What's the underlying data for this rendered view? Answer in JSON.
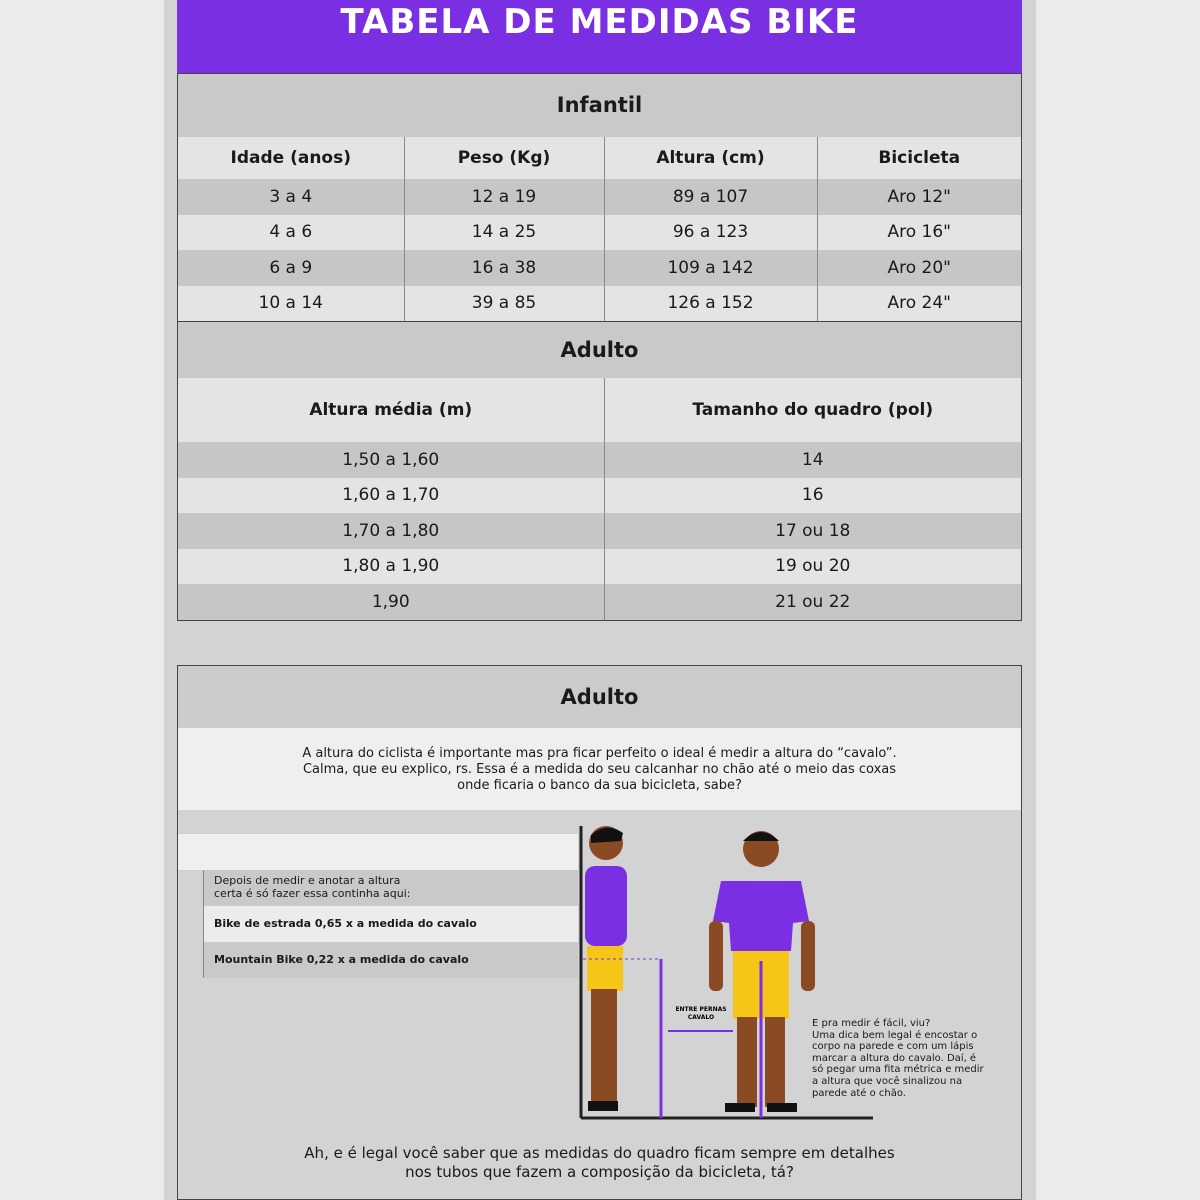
{
  "title": "TABELA DE MEDIDAS BIKE",
  "infantil": {
    "heading": "Infantil",
    "headers": [
      "Idade (anos)",
      "Peso (Kg)",
      "Altura (cm)",
      "Bicicleta"
    ],
    "rows": [
      [
        "3 a 4",
        "12 a 19",
        "89 a 107",
        "Aro 12\""
      ],
      [
        "4 a 6",
        "14 a 25",
        "96 a 123",
        "Aro 16\""
      ],
      [
        "6 a 9",
        "16 a 38",
        "109 a 142",
        "Aro 20\""
      ],
      [
        "10 a 14",
        "39 a 85",
        "126 a 152",
        "Aro 24\""
      ]
    ]
  },
  "adulto": {
    "heading": "Adulto",
    "headers": [
      "Altura média (m)",
      "Tamanho do quadro (pol)"
    ],
    "rows": [
      [
        "1,50 a 1,60",
        "14"
      ],
      [
        "1,60 a 1,70",
        "16"
      ],
      [
        "1,70 a 1,80",
        "17 ou 18"
      ],
      [
        "1,80 a 1,90",
        "19 ou 20"
      ],
      [
        "1,90",
        "21 ou 22"
      ]
    ]
  },
  "guide": {
    "heading": "Adulto",
    "intro": [
      "A altura do ciclista é importante mas pra ficar perfeito o ideal é medir a altura do “cavalo”.",
      "Calma, que eu explico, rs. Essa é a medida do seu calcanhar no chão até o meio das coxas",
      "onde ficaria o banco da sua bicicleta, sabe?"
    ],
    "steps_intro": [
      "Depois de medir e anotar a altura",
      "certa é só fazer essa continha aqui:"
    ],
    "road": "Bike de estrada 0,65 x a medida do cavalo",
    "mtb": "Mountain Bike 0,22 x a medida do cavalo",
    "between_legs": [
      "ENTRE PERNAS",
      "CAVALO"
    ],
    "tip": [
      "E pra medir é fácil, viu?",
      "Uma dica bem legal é encostar o",
      "corpo na parede e com um lápis",
      "marcar a altura do cavalo. Daí, é",
      "só pegar uma fita métrica e medir",
      "a altura que você sinalizou na",
      "parede até o chão."
    ],
    "footer": [
      "Ah, e é legal você saber que as medidas do quadro ficam sempre em detalhes",
      "nos tubos que fazem a composição da bicicleta, tá?"
    ]
  },
  "colors": {
    "accent": "#7b2fe3",
    "shorts": "#f5c518",
    "skin": "#8a4a24"
  }
}
